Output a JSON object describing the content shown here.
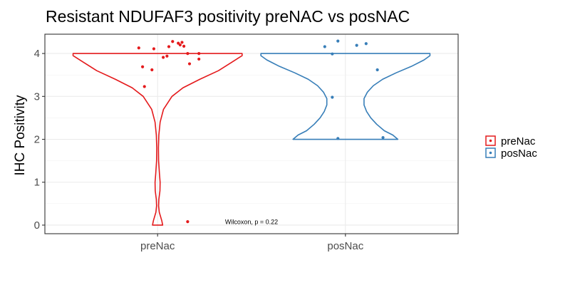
{
  "chart_data": {
    "type": "violin",
    "title": "Resistant NDUFAF3 positivity preNAC vs posNAC",
    "xlabel": "",
    "ylabel": "IHC Positivity",
    "categories": [
      "preNac",
      "posNac"
    ],
    "ylim": [
      -0.2,
      4.45
    ],
    "yticks": [
      0,
      1,
      2,
      3,
      4
    ],
    "grid": true,
    "legend": {
      "position": "right",
      "entries": [
        "preNac",
        "posNac"
      ]
    },
    "annotation": {
      "text": "Wilcoxon, p = 0.22",
      "x": 1.5,
      "y": 0.07
    },
    "series": [
      {
        "name": "preNac",
        "color": "#e41a1c",
        "violin": {
          "min": 0,
          "max": 4,
          "profile": [
            [
              0,
              0.06
            ],
            [
              0.1,
              0.05
            ],
            [
              0.2,
              0.035
            ],
            [
              0.3,
              0.02
            ],
            [
              0.45,
              0.012
            ],
            [
              0.6,
              0.015
            ],
            [
              0.8,
              0.028
            ],
            [
              1.0,
              0.03
            ],
            [
              1.2,
              0.022
            ],
            [
              1.5,
              0.012
            ],
            [
              1.8,
              0.01
            ],
            [
              2.1,
              0.015
            ],
            [
              2.4,
              0.03
            ],
            [
              2.7,
              0.07
            ],
            [
              3.0,
              0.17
            ],
            [
              3.2,
              0.3
            ],
            [
              3.4,
              0.5
            ],
            [
              3.6,
              0.72
            ],
            [
              3.8,
              0.88
            ],
            [
              3.95,
              1.0
            ],
            [
              4.0,
              1.0
            ]
          ]
        },
        "points": [
          {
            "x": 0.9,
            "y": 4.13
          },
          {
            "x": 0.98,
            "y": 4.11
          },
          {
            "x": 0.92,
            "y": 3.69
          },
          {
            "x": 0.97,
            "y": 3.62
          },
          {
            "x": 0.93,
            "y": 3.23
          },
          {
            "x": 1.05,
            "y": 3.94
          },
          {
            "x": 1.03,
            "y": 3.91
          },
          {
            "x": 1.08,
            "y": 4.28
          },
          {
            "x": 1.11,
            "y": 4.24
          },
          {
            "x": 1.12,
            "y": 4.2
          },
          {
            "x": 1.14,
            "y": 4.17
          },
          {
            "x": 1.13,
            "y": 4.26
          },
          {
            "x": 1.06,
            "y": 4.16
          },
          {
            "x": 1.17,
            "y": 3.76
          },
          {
            "x": 1.22,
            "y": 3.87
          },
          {
            "x": 1.22,
            "y": 4.0
          },
          {
            "x": 1.16,
            "y": 4.0
          },
          {
            "x": 1.16,
            "y": 0.08
          }
        ]
      },
      {
        "name": "posNac",
        "color": "#377eb8",
        "violin": {
          "min": 2,
          "max": 4,
          "profile": [
            [
              2.0,
              0.62
            ],
            [
              2.1,
              0.56
            ],
            [
              2.2,
              0.46
            ],
            [
              2.35,
              0.37
            ],
            [
              2.5,
              0.3
            ],
            [
              2.65,
              0.25
            ],
            [
              2.8,
              0.22
            ],
            [
              2.95,
              0.22
            ],
            [
              3.1,
              0.26
            ],
            [
              3.25,
              0.33
            ],
            [
              3.4,
              0.44
            ],
            [
              3.55,
              0.6
            ],
            [
              3.7,
              0.78
            ],
            [
              3.85,
              0.93
            ],
            [
              3.95,
              1.0
            ],
            [
              4.0,
              1.0
            ]
          ]
        },
        "points": [
          {
            "x": 1.89,
            "y": 4.16
          },
          {
            "x": 1.93,
            "y": 3.99
          },
          {
            "x": 1.96,
            "y": 4.29
          },
          {
            "x": 2.06,
            "y": 4.19
          },
          {
            "x": 2.11,
            "y": 4.23
          },
          {
            "x": 2.17,
            "y": 3.62
          },
          {
            "x": 1.93,
            "y": 2.98
          },
          {
            "x": 1.96,
            "y": 2.02
          },
          {
            "x": 2.2,
            "y": 2.04
          }
        ]
      }
    ]
  }
}
